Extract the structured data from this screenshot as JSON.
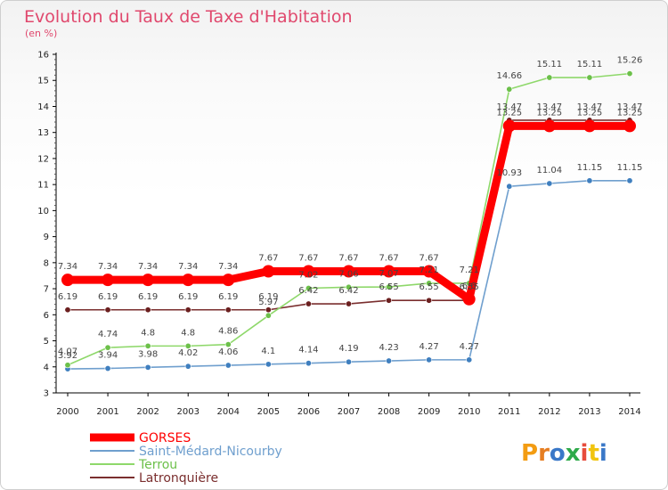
{
  "chart_data": {
    "type": "line",
    "title": "Evolution du Taux de Taxe d'Habitation",
    "subtitle": "(en %)",
    "x": [
      "2000",
      "2001",
      "2002",
      "2003",
      "2004",
      "2005",
      "2006",
      "2007",
      "2008",
      "2009",
      "2010",
      "2011",
      "2012",
      "2013",
      "2014"
    ],
    "ylim": [
      3,
      16
    ],
    "yticks": [
      3,
      4,
      5,
      6,
      7,
      8,
      9,
      10,
      11,
      12,
      13,
      14,
      15,
      16
    ],
    "grid": false,
    "legend_position": "bottom-left",
    "series": [
      {
        "name": "GORSES",
        "color": "#ff0000",
        "marker": "#ff0000",
        "values": [
          7.34,
          7.34,
          7.34,
          7.34,
          7.34,
          7.67,
          7.67,
          7.67,
          7.67,
          7.67,
          6.6,
          13.25,
          13.25,
          13.25,
          13.25
        ],
        "labels": [
          "7.34",
          "7.34",
          "7.34",
          "7.34",
          "7.34",
          "7.67",
          "7.67",
          "7.67",
          "7.67",
          "7.67",
          "6.6",
          "13.25",
          "13.25",
          "13.25",
          "13.25"
        ]
      },
      {
        "name": "Saint-Médard-Nicourby",
        "color": "#6f9fce",
        "marker": "#3f7fbf",
        "values": [
          3.92,
          3.94,
          3.98,
          4.02,
          4.06,
          4.1,
          4.14,
          4.19,
          4.23,
          4.27,
          4.27,
          10.93,
          11.04,
          11.15,
          11.15
        ],
        "labels": [
          "3.92",
          "3.94",
          "3.98",
          "4.02",
          "4.06",
          "4.1",
          "4.14",
          "4.19",
          "4.23",
          "4.27",
          "4.27",
          "10.93",
          "11.04",
          "11.15",
          "11.15"
        ]
      },
      {
        "name": "Terrou",
        "color": "#8ed86a",
        "marker": "#6cc04a",
        "values": [
          4.07,
          4.74,
          4.8,
          4.8,
          4.86,
          5.97,
          7.02,
          7.06,
          7.07,
          7.21,
          7.21,
          14.66,
          15.11,
          15.11,
          15.26
        ],
        "labels": [
          "4.07",
          "4.74",
          "4.8",
          "4.8",
          "4.86",
          "5.97",
          "7.02",
          "7.06",
          "7.07",
          "7.21",
          "7.21",
          "14.66",
          "15.11",
          "15.11",
          "15.26"
        ]
      },
      {
        "name": "Latronquière",
        "color": "#7a2e2e",
        "marker": "#6b1f1f",
        "values": [
          6.19,
          6.19,
          6.19,
          6.19,
          6.19,
          6.19,
          6.42,
          6.42,
          6.55,
          6.55,
          6.55,
          13.47,
          13.47,
          13.47,
          13.47
        ],
        "labels": [
          "6.19",
          "6.19",
          "6.19",
          "6.19",
          "6.19",
          "6.19",
          "6.42",
          "6.42",
          "6.55",
          "6.55",
          "6.55",
          "13.47",
          "13.47",
          "13.47",
          "13.47"
        ]
      }
    ]
  },
  "logo": {
    "text": "Proxiti"
  }
}
